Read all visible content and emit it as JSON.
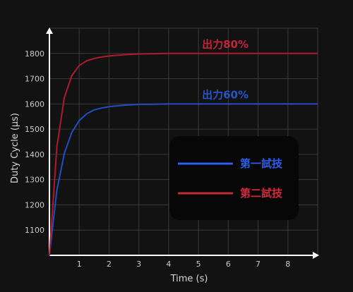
{
  "chart_data": {
    "type": "line",
    "title": "",
    "xlabel": "Time (s)",
    "ylabel": "Duty Cycle (µs)",
    "xlim": [
      0,
      9
    ],
    "ylim": [
      1000,
      1900
    ],
    "x_ticks": [
      "1",
      "2",
      "3",
      "4",
      "5",
      "6",
      "7",
      "8"
    ],
    "y_ticks": [
      "1100",
      "1200",
      "1300",
      "1400",
      "1500",
      "1600",
      "1700",
      "1800"
    ],
    "grid": true,
    "legend_position": "center-right",
    "x": [
      0,
      0.25,
      0.5,
      0.75,
      1,
      1.25,
      1.5,
      1.75,
      2,
      2.5,
      3,
      3.5,
      4,
      5,
      6,
      7,
      8,
      9
    ],
    "series": [
      {
        "name": "第一試技",
        "color": "#1f4fc0",
        "values": [
          1000,
          1258,
          1404,
          1487,
          1534,
          1561,
          1576,
          1584,
          1589,
          1595,
          1598,
          1599,
          1600,
          1600,
          1600,
          1600,
          1600,
          1600
        ]
      },
      {
        "name": "第二試技",
        "color": "#b01a2c",
        "values": [
          1000,
          1430,
          1625,
          1712,
          1752,
          1771,
          1780,
          1786,
          1790,
          1795,
          1798,
          1799,
          1800,
          1800,
          1800,
          1800,
          1800,
          1800
        ]
      }
    ],
    "annotations": [
      {
        "text": "出力80%",
        "x": 5,
        "y": 1822,
        "color": "#c8213a"
      },
      {
        "text": "出力60%",
        "x": 5,
        "y": 1622,
        "color": "#2455c8"
      }
    ]
  }
}
